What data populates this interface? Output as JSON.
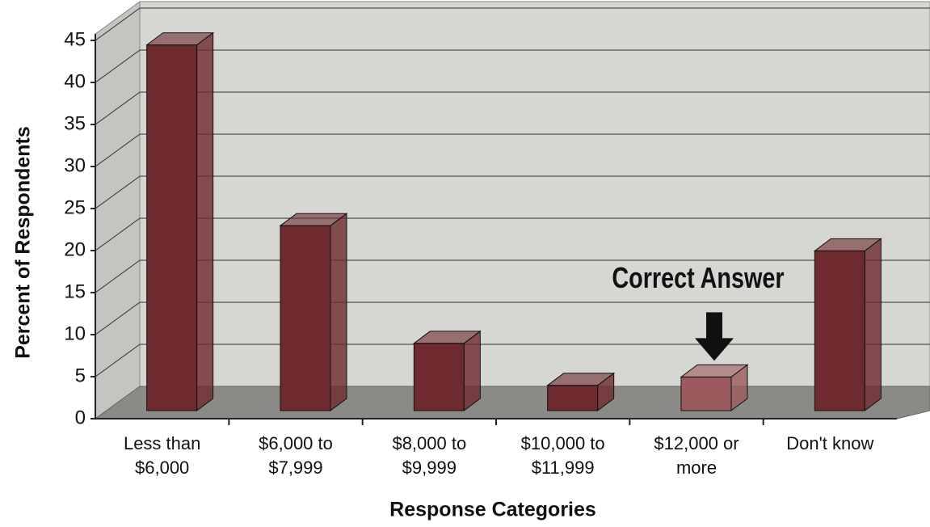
{
  "chart_data": {
    "type": "bar3d",
    "xlabel": "Response Categories",
    "ylabel": "Percent of Respondents",
    "annotation": "Correct Answer",
    "categories": [
      "Less than $6,000",
      "$6,000 to $7,999",
      "$8,000 to $9,999",
      "$10,000 to $11,999",
      "$12,000 or more",
      "Don't know"
    ],
    "values": [
      43.5,
      22,
      8,
      3,
      4,
      19
    ],
    "colors": [
      "#6e2a2e",
      "#6e2a2e",
      "#6e2a2e",
      "#6e2a2e",
      "#9c5a5e",
      "#6e2a2e"
    ],
    "ylim": [
      0,
      45
    ],
    "yticks": [
      0,
      5,
      10,
      15,
      20,
      25,
      30,
      35,
      40,
      45
    ],
    "grid": true
  }
}
